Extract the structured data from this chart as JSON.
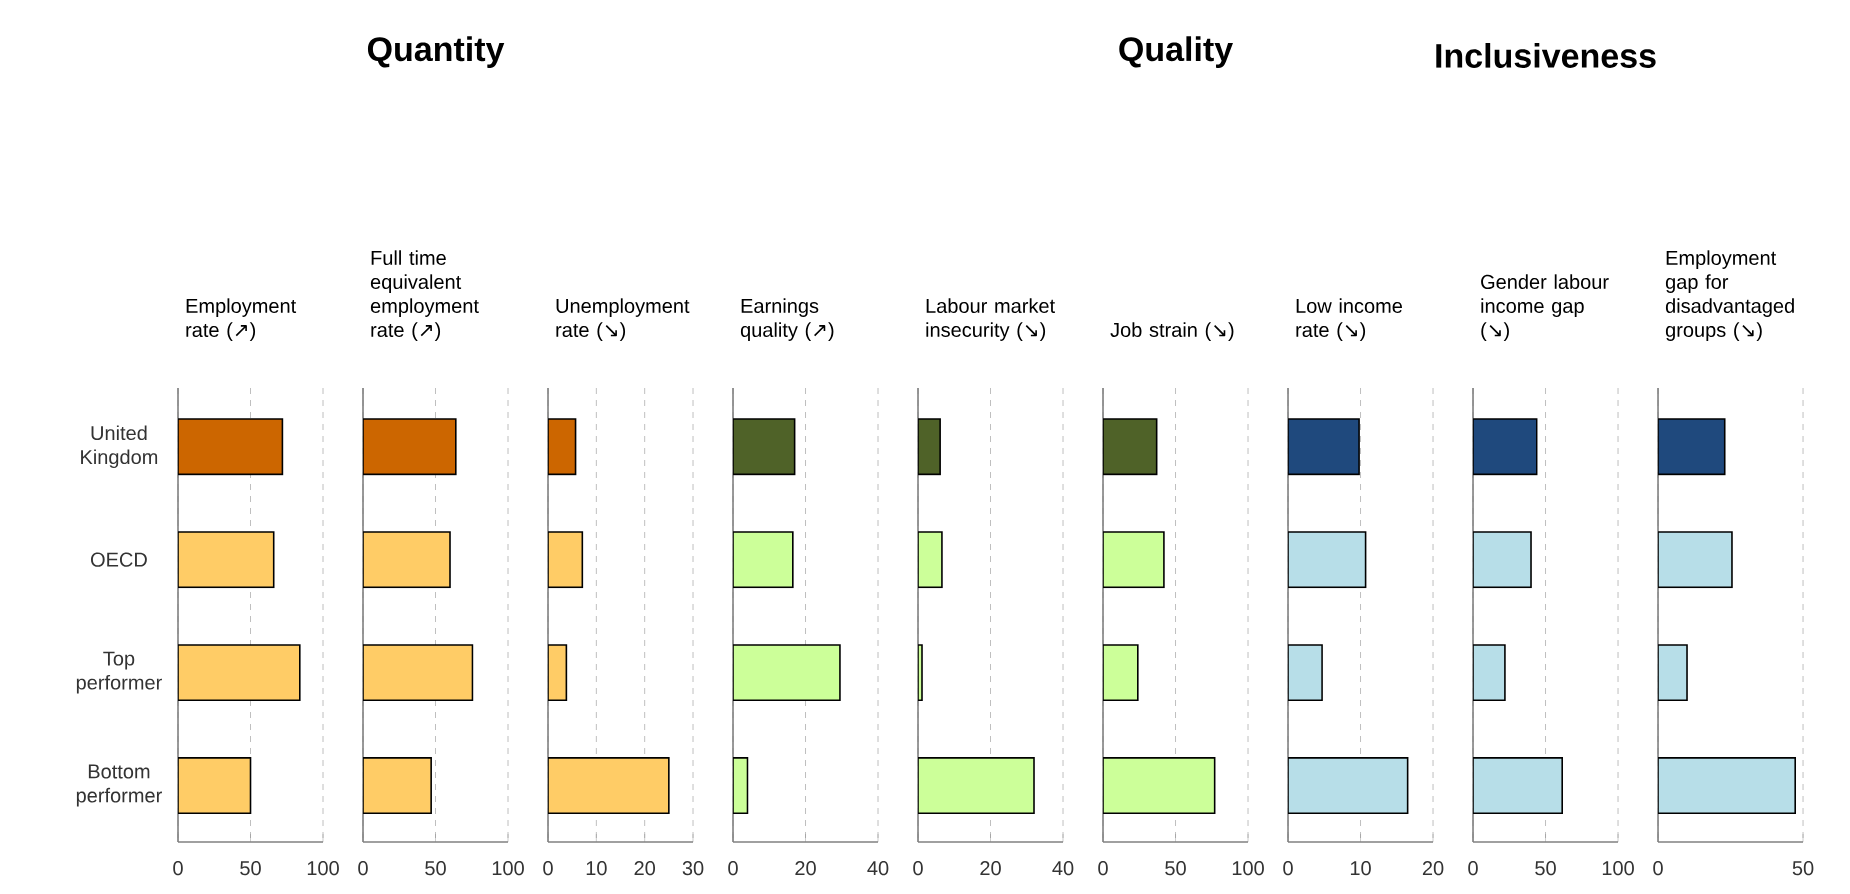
{
  "chart_data": [
    {
      "type": "bar",
      "orientation": "horizontal",
      "title": "Employment rate (↗)",
      "categories": [
        "United Kingdom",
        "OECD",
        "Top performer",
        "Bottom performer"
      ],
      "values": [
        72,
        66,
        84,
        50
      ],
      "colors": [
        "#cc6600",
        "#ffcc66",
        "#ffcc66",
        "#ffcc66"
      ],
      "xlim": [
        0,
        100
      ],
      "xticks": [
        0,
        50,
        100
      ],
      "grid": "x"
    },
    {
      "type": "bar",
      "orientation": "horizontal",
      "title": "Full time equivalent employment rate (↗)",
      "annotations": [
        "Quantity"
      ],
      "categories": [
        null,
        null,
        null,
        null
      ],
      "values": [
        64,
        60,
        75.5,
        47
      ],
      "colors": [
        "#cc6600",
        "#ffcc66",
        "#ffcc66",
        "#ffcc66"
      ],
      "xlim": [
        0,
        100
      ],
      "xticks": [
        0,
        50,
        100
      ],
      "grid": "x",
      "tick_labels": "x"
    },
    {
      "type": "bar",
      "orientation": "horizontal",
      "title": "Unemployment rate (↘)",
      "categories": [
        null,
        null,
        null,
        null
      ],
      "values": [
        5.7,
        7.1,
        3.8,
        25
      ],
      "colors": [
        "#cc6600",
        "#ffcc66",
        "#ffcc66",
        "#ffcc66"
      ],
      "xlim": [
        0,
        30
      ],
      "xticks": [
        0,
        10,
        20,
        30
      ],
      "grid": "x",
      "tick_labels": "x"
    },
    {
      "type": "bar",
      "orientation": "horizontal",
      "title": "Earnings quality (↗)",
      "categories": [
        null,
        null,
        null,
        null
      ],
      "values": [
        17,
        16.5,
        29.5,
        4
      ],
      "colors": [
        "#4f6228",
        "#ccff99",
        "#ccff99",
        "#ccff99"
      ],
      "xlim": [
        0,
        40
      ],
      "xticks": [
        0,
        20,
        40
      ],
      "grid": "x",
      "tick_labels": "x"
    },
    {
      "type": "bar",
      "orientation": "horizontal",
      "title": "Labour market insecurity (↘)",
      "categories": [
        null,
        null,
        null,
        null
      ],
      "values": [
        6.1,
        6.6,
        1.1,
        32
      ],
      "colors": [
        "#4f6228",
        "#ccff99",
        "#ccff99",
        "#ccff99"
      ],
      "xlim": [
        0,
        40
      ],
      "xticks": [
        0,
        20,
        40
      ],
      "grid": "x",
      "tick_labels": "x"
    },
    {
      "type": "bar",
      "orientation": "horizontal",
      "title": "Job strain (↘)",
      "annotations": [
        "Quality"
      ],
      "categories": [
        null,
        null,
        null,
        null
      ],
      "values": [
        37,
        42,
        24,
        77
      ],
      "colors": [
        "#4f6228",
        "#ccff99",
        "#ccff99",
        "#ccff99"
      ],
      "xlim": [
        0,
        100
      ],
      "xticks": [
        0,
        50,
        100
      ],
      "grid": "x",
      "tick_labels": "x"
    },
    {
      "type": "bar",
      "orientation": "horizontal",
      "title": "Low income rate (↘)",
      "categories": [
        null,
        null,
        null,
        null
      ],
      "values": [
        9.8,
        10.7,
        4.7,
        16.5
      ],
      "colors": [
        "#1f497d",
        "#b7dee8",
        "#b7dee8",
        "#b7dee8"
      ],
      "xlim": [
        0,
        20
      ],
      "xticks": [
        0,
        10,
        20
      ],
      "grid": "x",
      "tick_labels": "x"
    },
    {
      "type": "bar",
      "orientation": "horizontal",
      "title": "Gender labour income gap (↘)",
      "annotations": [
        "Inclusiveness"
      ],
      "categories": [
        null,
        null,
        null,
        null
      ],
      "values": [
        44,
        40,
        22,
        61.5
      ],
      "colors": [
        "#1f497d",
        "#b7dee8",
        "#b7dee8",
        "#b7dee8"
      ],
      "xlim": [
        0,
        100
      ],
      "xticks": [
        0,
        50,
        100
      ],
      "grid": "x",
      "tick_labels": "x"
    },
    {
      "type": "bar",
      "orientation": "horizontal",
      "title": "Employment gap for disadvantaged groups (↘)",
      "categories": [
        null,
        null,
        null,
        null
      ],
      "values": [
        23,
        25.5,
        10,
        47.3
      ],
      "colors": [
        "#1f497d",
        "#b7dee8",
        "#b7dee8",
        "#b7dee8"
      ],
      "xlim": [
        0,
        50
      ],
      "xticks": [
        0,
        50
      ],
      "grid": "x",
      "tick_labels": "x"
    }
  ]
}
